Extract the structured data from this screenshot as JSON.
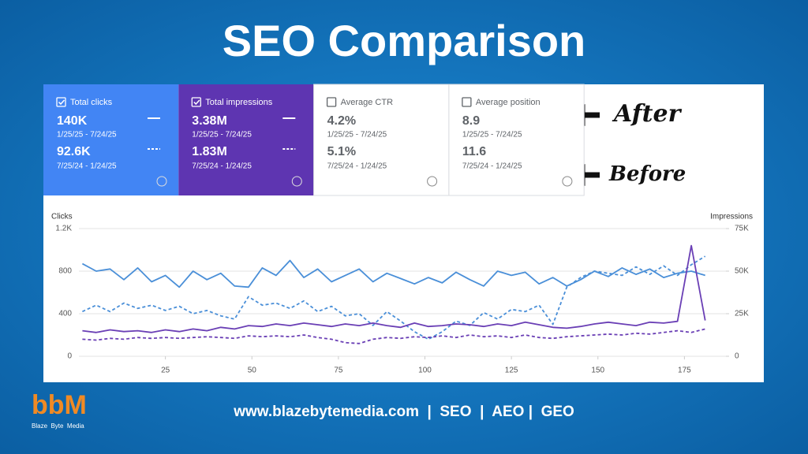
{
  "title": "SEO Comparison",
  "metrics": [
    {
      "label": "Total clicks",
      "after": "140K",
      "after_range": "1/25/25 - 7/24/25",
      "before": "92.6K",
      "before_range": "7/25/24 - 1/24/25",
      "selected": true,
      "color": "#4285f4"
    },
    {
      "label": "Total impressions",
      "after": "3.38M",
      "after_range": "1/25/25 - 7/24/25",
      "before": "1.83M",
      "before_range": "7/25/24 - 1/24/25",
      "selected": true,
      "color": "#5e35b1"
    },
    {
      "label": "Average CTR",
      "after": "4.2%",
      "after_range": "1/25/25 - 7/24/25",
      "before": "5.1%",
      "before_range": "7/25/24 - 1/24/25",
      "selected": false,
      "color": "#ffffff"
    },
    {
      "label": "Average position",
      "after": "8.9",
      "after_range": "1/25/25 - 7/24/25",
      "before": "11.6",
      "before_range": "7/25/24 - 1/24/25",
      "selected": false,
      "color": "#ffffff"
    }
  ],
  "annotations": {
    "after": "After",
    "before": "Before"
  },
  "chart_data": {
    "type": "line",
    "y_label": "Clicks",
    "y2_label": "Impressions",
    "grid": true,
    "x": [
      1,
      5,
      9,
      13,
      17,
      21,
      25,
      29,
      33,
      37,
      41,
      45,
      49,
      53,
      57,
      61,
      65,
      69,
      73,
      77,
      81,
      85,
      89,
      93,
      97,
      101,
      105,
      109,
      113,
      117,
      121,
      125,
      129,
      133,
      137,
      141,
      145,
      149,
      153,
      157,
      161,
      165,
      169,
      173,
      177,
      181
    ],
    "xlim": [
      0,
      187
    ],
    "xticks": [
      25,
      50,
      75,
      100,
      125,
      150,
      175
    ],
    "ylim": [
      0,
      1200
    ],
    "yticks": [
      0,
      400,
      800,
      {
        "value": 1200,
        "label": "1.2K"
      }
    ],
    "y2lim": [
      0,
      75000
    ],
    "y2ticks": [
      0,
      {
        "value": 25000,
        "label": "25K"
      },
      {
        "value": 50000,
        "label": "50K"
      },
      {
        "value": 75000,
        "label": "75K"
      }
    ],
    "series": [
      {
        "color": "#4a8fd8",
        "dash": false,
        "values": [
          870,
          800,
          820,
          720,
          830,
          700,
          760,
          650,
          800,
          720,
          780,
          660,
          650,
          830,
          760,
          900,
          740,
          820,
          700,
          760,
          820,
          700,
          780,
          730,
          680,
          740,
          690,
          790,
          720,
          660,
          800,
          760,
          790,
          680,
          740,
          660,
          720,
          800,
          750,
          830,
          770,
          820,
          740,
          780,
          800,
          760
        ]
      },
      {
        "color": "#4a8fd8",
        "dash": true,
        "values": [
          420,
          480,
          420,
          500,
          450,
          480,
          430,
          470,
          400,
          430,
          380,
          350,
          560,
          480,
          500,
          450,
          520,
          420,
          470,
          380,
          400,
          290,
          420,
          330,
          230,
          160,
          230,
          330,
          290,
          410,
          350,
          440,
          420,
          480,
          300,
          650,
          740,
          800,
          780,
          760,
          840,
          770,
          850,
          760,
          860,
          940
        ]
      },
      {
        "color": "#6a3fb5",
        "dash": false,
        "axis": "y2",
        "values": [
          15000,
          14000,
          15500,
          14500,
          15000,
          14000,
          15500,
          14500,
          16000,
          15000,
          17000,
          16000,
          18000,
          17500,
          19000,
          18000,
          19500,
          18500,
          17500,
          19000,
          18000,
          19500,
          18000,
          17000,
          19500,
          17500,
          18000,
          19000,
          18500,
          17500,
          19000,
          18000,
          20000,
          18500,
          17000,
          16500,
          17500,
          19000,
          20000,
          19000,
          18000,
          20000,
          19500,
          20500,
          65000,
          21000
        ]
      },
      {
        "color": "#6a3fb5",
        "dash": true,
        "axis": "y2",
        "values": [
          10000,
          9500,
          10500,
          10000,
          11000,
          10500,
          11000,
          10500,
          11000,
          11500,
          11000,
          10500,
          12000,
          11500,
          12000,
          11500,
          12500,
          11000,
          10000,
          8000,
          7500,
          10000,
          11000,
          10500,
          11500,
          11000,
          12000,
          11000,
          12500,
          11500,
          12000,
          11000,
          12500,
          11000,
          10500,
          11500,
          12000,
          12500,
          13000,
          12500,
          13500,
          13000,
          14000,
          15000,
          14000,
          16000
        ]
      }
    ]
  },
  "footer": "www.blazebytemedia.com  |  SEO  |  AEO |  GEO",
  "logo": {
    "mark": "bbM",
    "text": "Blaze  Byte  Media"
  }
}
